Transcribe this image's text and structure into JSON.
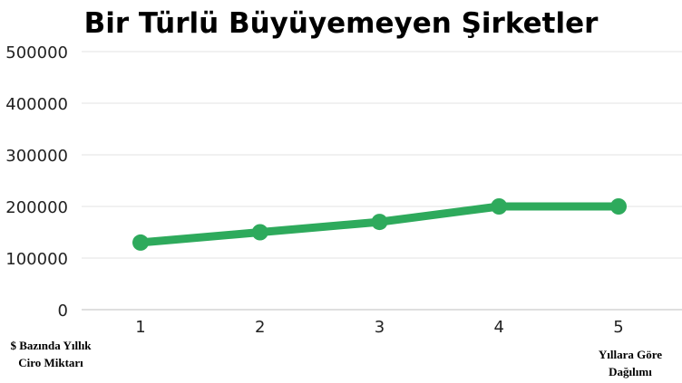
{
  "chart_data": {
    "type": "line",
    "title": "Bir Türlü Büyüyemeyen Şirketler",
    "ylabel": "$ Bazında Yıllık Ciro Miktarı",
    "xlabel": "Yıllara Göre Dağılımı",
    "x": [
      "1",
      "2",
      "3",
      "4",
      "5"
    ],
    "series": [
      {
        "values": [
          130000,
          150000,
          170000,
          200000,
          200000
        ]
      }
    ],
    "ylim": [
      0,
      500000
    ],
    "yticks": [
      "0",
      "100000",
      "200000",
      "300000",
      "400000",
      "500000"
    ],
    "grid": true,
    "color": "#2eaa5c"
  }
}
